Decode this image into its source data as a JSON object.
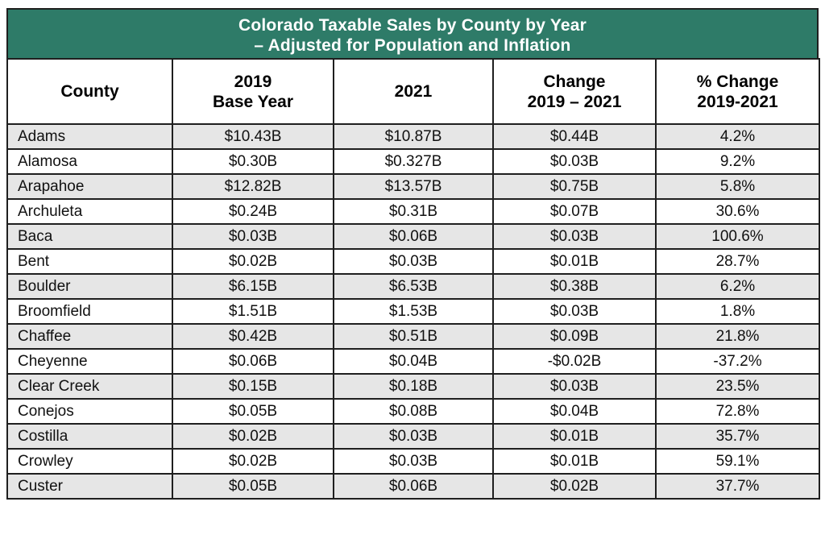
{
  "title": {
    "line1": "Colorado Taxable Sales by County by Year",
    "line2": "– Adjusted for Population and Inflation"
  },
  "headers": [
    {
      "line1": "County",
      "line2": ""
    },
    {
      "line1": "2019",
      "line2": "Base Year"
    },
    {
      "line1": "2021",
      "line2": ""
    },
    {
      "line1": "Change",
      "line2": "2019 – 2021"
    },
    {
      "line1": "% Change",
      "line2": "2019-2021"
    }
  ],
  "rows": [
    [
      "Adams",
      "$10.43B",
      "$10.87B",
      "$0.44B",
      "4.2%"
    ],
    [
      "Alamosa",
      "$0.30B",
      "$0.327B",
      "$0.03B",
      "9.2%"
    ],
    [
      "Arapahoe",
      "$12.82B",
      "$13.57B",
      "$0.75B",
      "5.8%"
    ],
    [
      "Archuleta",
      "$0.24B",
      "$0.31B",
      "$0.07B",
      "30.6%"
    ],
    [
      "Baca",
      "$0.03B",
      "$0.06B",
      "$0.03B",
      "100.6%"
    ],
    [
      "Bent",
      "$0.02B",
      "$0.03B",
      "$0.01B",
      "28.7%"
    ],
    [
      "Boulder",
      "$6.15B",
      "$6.53B",
      "$0.38B",
      "6.2%"
    ],
    [
      "Broomfield",
      "$1.51B",
      "$1.53B",
      "$0.03B",
      "1.8%"
    ],
    [
      "Chaffee",
      "$0.42B",
      "$0.51B",
      "$0.09B",
      "21.8%"
    ],
    [
      "Cheyenne",
      "$0.06B",
      "$0.04B",
      "-$0.02B",
      "-37.2%"
    ],
    [
      "Clear Creek",
      "$0.15B",
      "$0.18B",
      "$0.03B",
      "23.5%"
    ],
    [
      "Conejos",
      "$0.05B",
      "$0.08B",
      "$0.04B",
      "72.8%"
    ],
    [
      "Costilla",
      "$0.02B",
      "$0.03B",
      "$0.01B",
      "35.7%"
    ],
    [
      "Crowley",
      "$0.02B",
      "$0.03B",
      "$0.01B",
      "59.1%"
    ],
    [
      "Custer",
      "$0.05B",
      "$0.06B",
      "$0.02B",
      "37.7%"
    ]
  ],
  "colors": {
    "title_bg": "#2e7b68",
    "stripe": "#e6e6e6"
  }
}
